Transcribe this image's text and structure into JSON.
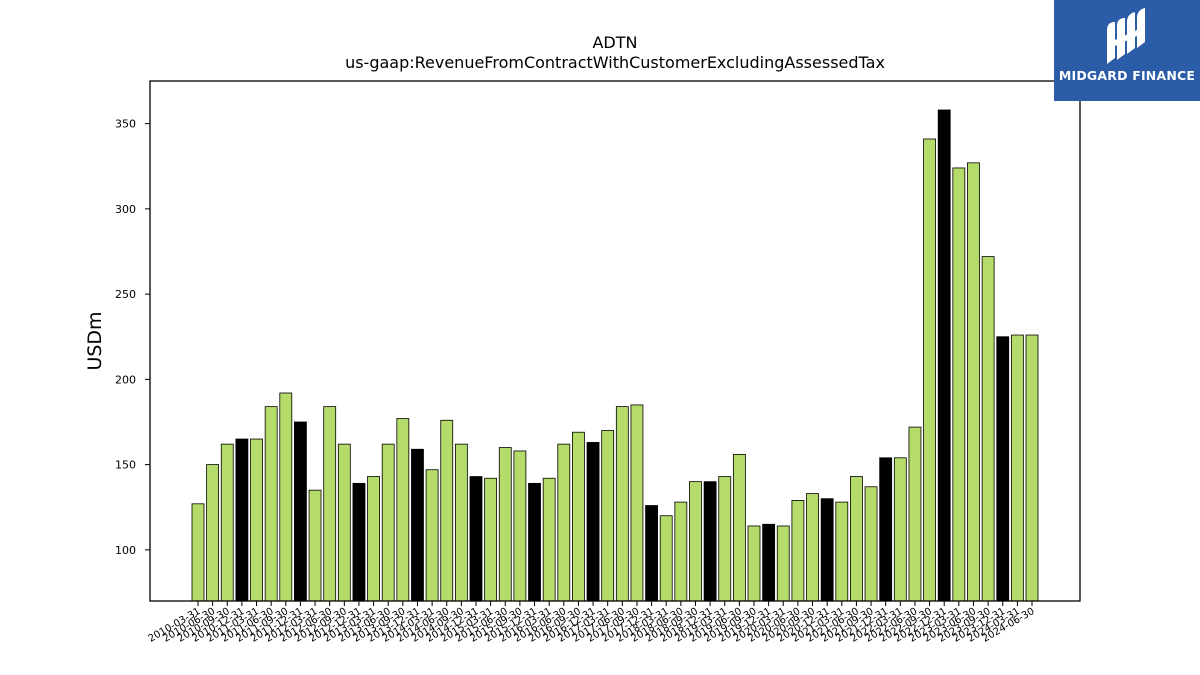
{
  "logo": {
    "text": "MIDGARD FINANCE",
    "icon": "midgard-logo-icon",
    "background": "#2b5ca8"
  },
  "colors": {
    "bar_regular": "#b5dc6a",
    "bar_highlight": "#000000",
    "edge": "#000000"
  },
  "chart_data": {
    "type": "bar",
    "title": "ADTN",
    "subtitle": "us-gaap:RevenueFromContractWithCustomerExcludingAssessedTax",
    "xlabel": "",
    "ylabel": "USDm",
    "ylim": [
      70,
      375
    ],
    "yticks": [
      100,
      150,
      200,
      250,
      300,
      350
    ],
    "grid": false,
    "legend": "none",
    "categories": [
      "2010-03-31",
      "2010-06-30",
      "2010-09-30",
      "2010-12-31",
      "2011-03-31",
      "2011-06-30",
      "2011-09-30",
      "2011-12-31",
      "2012-03-31",
      "2012-06-30",
      "2012-09-30",
      "2012-12-31",
      "2013-03-31",
      "2013-06-30",
      "2013-09-30",
      "2013-12-31",
      "2014-03-31",
      "2014-06-30",
      "2014-09-30",
      "2014-12-31",
      "2015-03-31",
      "2015-06-30",
      "2015-09-30",
      "2015-12-31",
      "2016-03-31",
      "2016-06-30",
      "2016-09-30",
      "2016-12-31",
      "2017-03-31",
      "2017-06-30",
      "2017-09-30",
      "2017-12-31",
      "2018-03-31",
      "2018-06-30",
      "2018-09-30",
      "2018-12-31",
      "2019-03-31",
      "2019-06-30",
      "2019-09-30",
      "2019-12-31",
      "2020-03-31",
      "2020-06-30",
      "2020-09-30",
      "2020-12-31",
      "2021-03-31",
      "2021-06-30",
      "2021-09-30",
      "2021-12-31",
      "2022-03-31",
      "2022-06-30",
      "2022-09-30",
      "2022-12-31",
      "2023-03-31",
      "2023-06-30",
      "2023-09-30",
      "2023-12-31",
      "2024-03-31",
      "2024-06-30"
    ],
    "values": [
      127,
      150,
      162,
      165,
      165,
      184,
      192,
      175,
      135,
      184,
      162,
      139,
      143,
      162,
      177,
      159,
      147,
      176,
      162,
      143,
      142,
      160,
      158,
      139,
      142,
      162,
      169,
      163,
      170,
      184,
      185,
      126,
      120,
      128,
      140,
      140,
      143,
      156,
      114,
      115,
      114,
      129,
      133,
      130,
      128,
      143,
      137,
      154,
      154,
      172,
      341,
      358,
      324,
      327,
      272,
      225,
      226,
      226
    ],
    "highlight": [
      false,
      false,
      false,
      true,
      false,
      false,
      false,
      true,
      false,
      false,
      false,
      true,
      false,
      false,
      false,
      true,
      false,
      false,
      false,
      true,
      false,
      false,
      false,
      true,
      false,
      false,
      false,
      true,
      false,
      false,
      false,
      true,
      false,
      false,
      false,
      true,
      false,
      false,
      false,
      true,
      false,
      false,
      false,
      true,
      false,
      false,
      false,
      true,
      false,
      false,
      false,
      true,
      false,
      false,
      false,
      true,
      false,
      false
    ]
  }
}
